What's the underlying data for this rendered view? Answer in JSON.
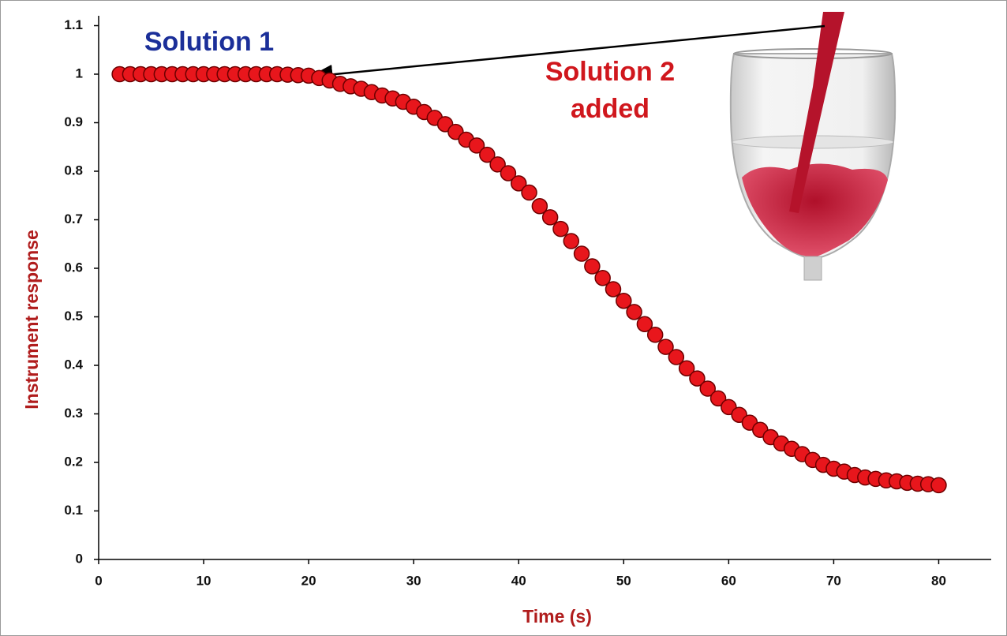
{
  "chart_data": {
    "type": "scatter",
    "x_label": "Time (s)",
    "y_label": "Instrument response",
    "annotations": [
      {
        "lines": [
          "Solution 1"
        ],
        "color": "#1b2f99"
      },
      {
        "lines": [
          "Solution 2",
          "added"
        ],
        "color": "#d0171d"
      }
    ],
    "axis_label_color": "#b01c1c",
    "x": [
      2,
      3,
      4,
      5,
      6,
      7,
      8,
      9,
      10,
      11,
      12,
      13,
      14,
      15,
      16,
      17,
      18,
      19,
      20,
      21,
      22,
      23,
      24,
      25,
      26,
      27,
      28,
      29,
      30,
      31,
      32,
      33,
      34,
      35,
      36,
      37,
      38,
      39,
      40,
      41,
      42,
      43,
      44,
      45,
      46,
      47,
      48,
      49,
      50,
      51,
      52,
      53,
      54,
      55,
      56,
      57,
      58,
      59,
      60,
      61,
      62,
      63,
      64,
      65,
      66,
      67,
      68,
      69,
      70,
      71,
      72,
      73,
      74,
      75,
      76,
      77,
      78,
      79,
      80
    ],
    "series": [
      {
        "color": "#e8161c",
        "edge_color": "#6e0000",
        "values": [
          1,
          1,
          1,
          1,
          1,
          1,
          1,
          1,
          1,
          1,
          1,
          1,
          1,
          1,
          1,
          1,
          0.999,
          0.998,
          0.997,
          0.992,
          0.987,
          0.98,
          0.975,
          0.97,
          0.963,
          0.956,
          0.95,
          0.943,
          0.933,
          0.922,
          0.91,
          0.897,
          0.881,
          0.865,
          0.853,
          0.834,
          0.814,
          0.796,
          0.775,
          0.756,
          0.728,
          0.705,
          0.681,
          0.656,
          0.63,
          0.604,
          0.58,
          0.557,
          0.533,
          0.51,
          0.485,
          0.463,
          0.438,
          0.417,
          0.394,
          0.373,
          0.352,
          0.332,
          0.314,
          0.298,
          0.282,
          0.267,
          0.252,
          0.239,
          0.228,
          0.217,
          0.205,
          0.195,
          0.187,
          0.181,
          0.174,
          0.169,
          0.166,
          0.163,
          0.161,
          0.158,
          0.156,
          0.155,
          0.153
        ]
      }
    ],
    "xlim": [
      0,
      85
    ],
    "ylim": [
      0,
      1.1
    ],
    "xticks": [
      0,
      10,
      20,
      30,
      40,
      50,
      60,
      70,
      80
    ],
    "yticks": [
      0,
      0.1,
      0.2,
      0.3,
      0.4,
      0.5,
      0.6,
      0.7,
      0.8,
      0.9,
      1,
      1.1
    ]
  }
}
